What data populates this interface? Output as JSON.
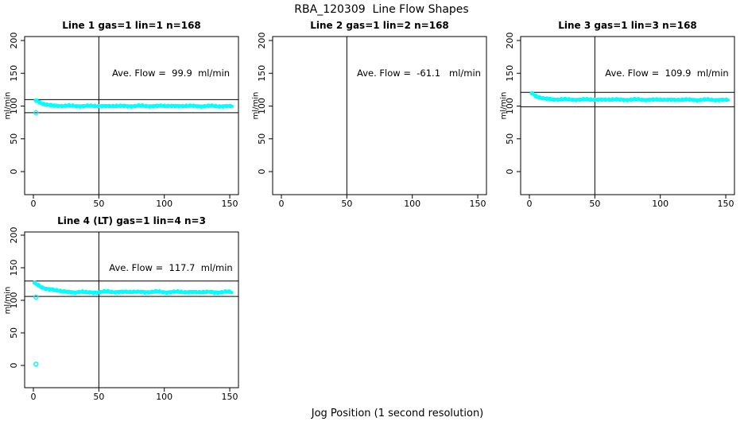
{
  "figure": {
    "title": "RBA_120309  Line Flow Shapes",
    "xlabel": "Jog Position (1 second resolution)"
  },
  "colors": {
    "points": "#00FFFF",
    "axis": "#000000",
    "background": "#FFFFFF",
    "text": "#000000"
  },
  "chart_data": [
    {
      "type": "scatter",
      "title": "Line 1 gas=1 lin=1 n=168",
      "ylabel": "ml/min",
      "annotation": "Ave. Flow =  99.9  ml/min",
      "ave_flow_ml_min": 99.9,
      "n": 168,
      "x_ticks": [
        0,
        50,
        100,
        150
      ],
      "y_ticks": [
        0,
        50,
        100,
        150,
        200
      ],
      "xlim": [
        -6,
        156
      ],
      "ylim": [
        -35,
        206
      ],
      "vline_x": 50,
      "ref_lines": [
        89.9,
        109.9
      ],
      "band_halfwidth": 1.0,
      "series_anchors": [
        [
          2,
          108.5
        ],
        [
          4,
          106.5
        ],
        [
          7,
          103.5
        ],
        [
          10,
          102
        ],
        [
          15,
          100.8
        ],
        [
          25,
          100.2
        ],
        [
          60,
          100
        ],
        [
          100,
          100.2
        ],
        [
          152,
          99.8
        ]
      ],
      "outliers": [
        [
          2,
          90
        ]
      ]
    },
    {
      "type": "scatter",
      "title": "Line 2 gas=1 lin=2 n=168",
      "ylabel": "ml/min",
      "annotation": "Ave. Flow =  -61.1   ml/min",
      "ave_flow_ml_min": -61.1,
      "n": 168,
      "x_ticks": [
        0,
        50,
        100,
        150
      ],
      "y_ticks": [
        0,
        50,
        100,
        150,
        200
      ],
      "xlim": [
        -6,
        156
      ],
      "ylim": [
        -35,
        206
      ],
      "vline_x": 50,
      "ref_lines": [],
      "band_halfwidth": 0,
      "series_anchors": [],
      "outliers": []
    },
    {
      "type": "scatter",
      "title": "Line 3 gas=1 lin=3 n=168",
      "ylabel": "ml/min",
      "annotation": "Ave. Flow =  109.9  ml/min",
      "ave_flow_ml_min": 109.9,
      "n": 168,
      "x_ticks": [
        0,
        50,
        100,
        150
      ],
      "y_ticks": [
        0,
        50,
        100,
        150,
        200
      ],
      "xlim": [
        -6,
        156
      ],
      "ylim": [
        -35,
        206
      ],
      "vline_x": 50,
      "ref_lines": [
        98.9,
        120.9
      ],
      "band_halfwidth": 1.0,
      "series_anchors": [
        [
          2,
          119.5
        ],
        [
          4,
          116
        ],
        [
          7,
          113.5
        ],
        [
          11,
          111.5
        ],
        [
          18,
          110.3
        ],
        [
          30,
          110
        ],
        [
          80,
          109.8
        ],
        [
          152,
          109.5
        ]
      ],
      "outliers": []
    },
    {
      "type": "scatter",
      "title": "Line 4 (LT) gas=1 lin=4 n=3",
      "ylabel": "ml/min",
      "annotation": "Ave. Flow =  117.7  ml/min",
      "ave_flow_ml_min": 117.7,
      "n": 3,
      "x_ticks": [
        0,
        50,
        100,
        150
      ],
      "y_ticks": [
        0,
        50,
        100,
        150,
        200
      ],
      "xlim": [
        -6,
        156
      ],
      "ylim": [
        -35,
        206
      ],
      "vline_x": 50,
      "ref_lines": [
        105.9,
        129.5
      ],
      "band_halfwidth": 1.4,
      "series_anchors": [
        [
          1,
          126
        ],
        [
          3,
          123.5
        ],
        [
          6,
          120.5
        ],
        [
          10,
          118
        ],
        [
          15,
          116
        ],
        [
          20,
          114.5
        ],
        [
          26,
          113
        ],
        [
          31,
          112
        ],
        [
          36,
          113.5
        ],
        [
          41,
          111.5
        ],
        [
          46,
          112.5
        ],
        [
          55,
          113
        ],
        [
          100,
          112.8
        ],
        [
          152,
          112.5
        ]
      ],
      "outliers": [
        [
          2,
          105
        ],
        [
          2,
          2
        ]
      ]
    }
  ]
}
